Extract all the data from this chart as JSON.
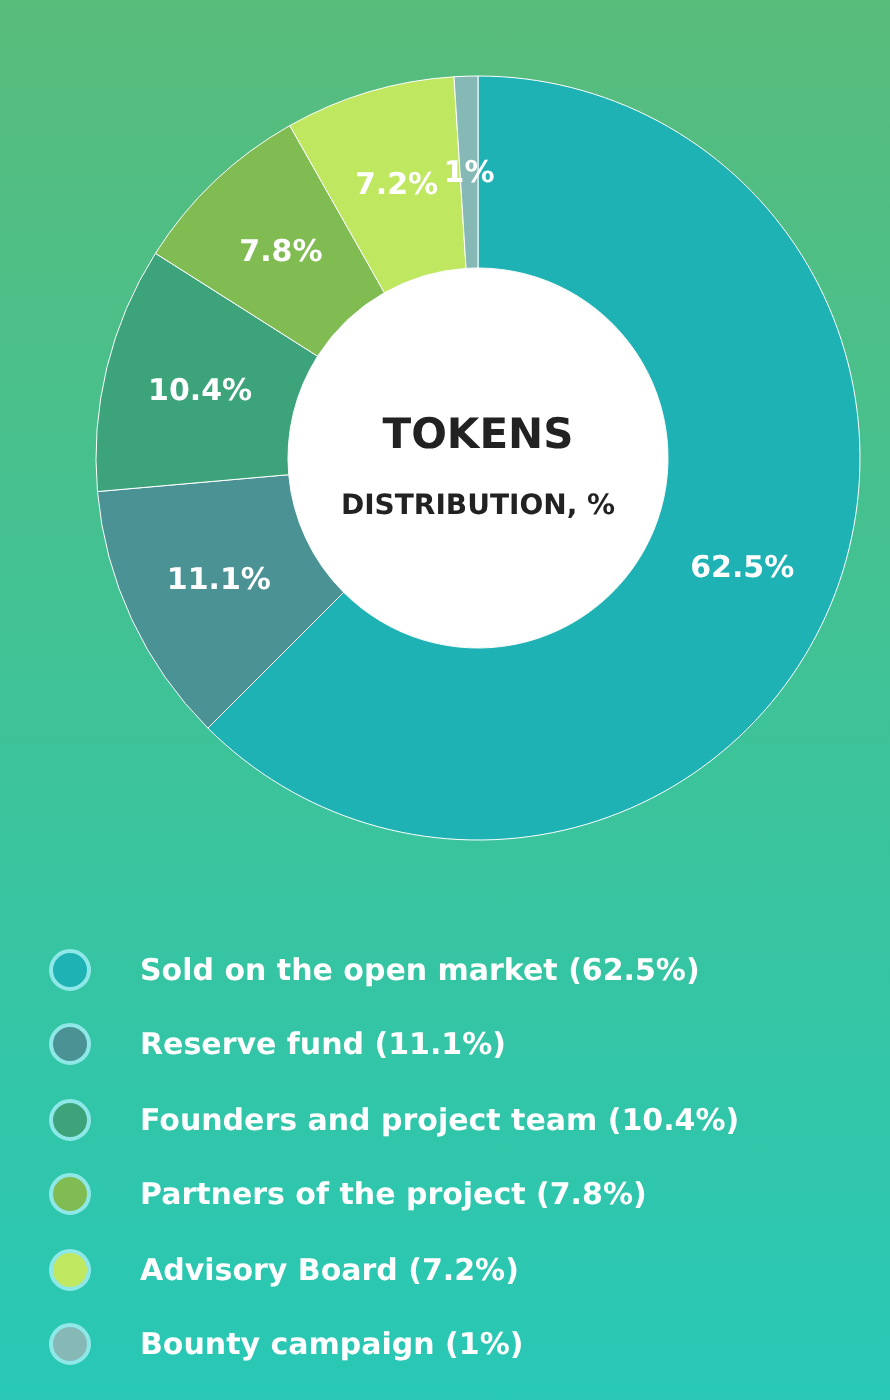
{
  "chart_data": {
    "type": "donut",
    "title": "TOKENS",
    "subtitle": "DISTRIBUTION, %",
    "categories": [
      "Sold on the open market (62.5%)",
      "Reserve fund (11.1%)",
      "Founders and project team (10.4%)",
      "Partners of the project (7.8%)",
      "Advisory Board (7.2%)",
      "Bounty campaign (1%)"
    ],
    "values": [
      62.5,
      11.1,
      10.4,
      7.8,
      7.2,
      1
    ],
    "colors": [
      "#1eb2b4",
      "#4a9294",
      "#3ca37a",
      "#80bc52",
      "#bfe75f",
      "#86b9b5"
    ],
    "value_labels": [
      "62.5%",
      "11.1%",
      "10.4%",
      "7.8%",
      "7.2%",
      "1%"
    ],
    "legend": "bottom"
  }
}
